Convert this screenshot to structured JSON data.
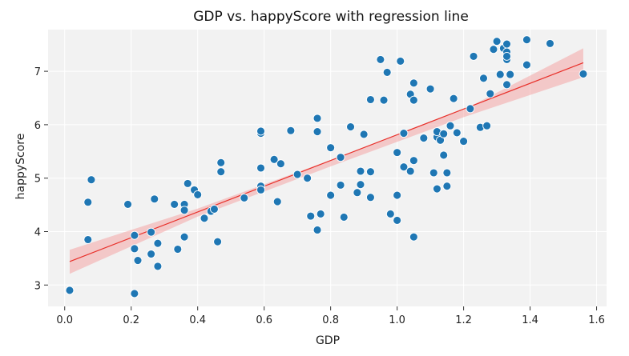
{
  "chart_data": {
    "type": "scatter",
    "title": "GDP vs. happyScore with regression line",
    "xlabel": "GDP",
    "ylabel": "happyScore",
    "xlim": [
      -0.05,
      1.63
    ],
    "ylim": [
      2.6,
      7.78
    ],
    "xticks": [
      "0.0",
      "0.2",
      "0.4",
      "0.6",
      "0.8",
      "1.0",
      "1.2",
      "1.4",
      "1.6"
    ],
    "xtick_values": [
      0.0,
      0.2,
      0.4,
      0.6,
      0.8,
      1.0,
      1.2,
      1.4,
      1.6
    ],
    "yticks": [
      "3",
      "4",
      "5",
      "6",
      "7"
    ],
    "ytick_values": [
      3,
      4,
      5,
      6,
      7
    ],
    "grid": true,
    "colors": {
      "points": "#1f77b4",
      "point_edge": "#ffffff",
      "regression_line": "#e8302a",
      "confidence_band": "#f4a6a6",
      "plot_background": "#f2f2f2",
      "grid": "#ffffff"
    },
    "regression": {
      "x": [
        0.015,
        1.56
      ],
      "y": [
        3.44,
        7.16
      ]
    },
    "confidence_band": {
      "x": [
        0.015,
        0.4,
        0.8,
        1.2,
        1.56
      ],
      "upper": [
        3.66,
        4.43,
        5.34,
        6.28,
        7.43
      ],
      "lower": [
        3.21,
        4.28,
        5.22,
        6.14,
        6.89
      ]
    },
    "points": [
      [
        0.015,
        2.9
      ],
      [
        0.07,
        3.85
      ],
      [
        0.07,
        4.55
      ],
      [
        0.08,
        4.97
      ],
      [
        0.19,
        4.51
      ],
      [
        0.21,
        2.84
      ],
      [
        0.21,
        3.68
      ],
      [
        0.21,
        3.93
      ],
      [
        0.22,
        3.46
      ],
      [
        0.26,
        3.58
      ],
      [
        0.26,
        3.99
      ],
      [
        0.27,
        4.61
      ],
      [
        0.28,
        3.35
      ],
      [
        0.28,
        3.78
      ],
      [
        0.33,
        4.51
      ],
      [
        0.34,
        3.67
      ],
      [
        0.36,
        4.51
      ],
      [
        0.36,
        4.4
      ],
      [
        0.36,
        3.9
      ],
      [
        0.37,
        4.9
      ],
      [
        0.39,
        4.78
      ],
      [
        0.4,
        4.69
      ],
      [
        0.42,
        4.25
      ],
      [
        0.44,
        4.38
      ],
      [
        0.45,
        4.42
      ],
      [
        0.46,
        3.81
      ],
      [
        0.47,
        5.12
      ],
      [
        0.47,
        5.29
      ],
      [
        0.54,
        4.63
      ],
      [
        0.59,
        4.85
      ],
      [
        0.59,
        4.78
      ],
      [
        0.59,
        5.19
      ],
      [
        0.59,
        5.84
      ],
      [
        0.59,
        5.88
      ],
      [
        0.63,
        5.35
      ],
      [
        0.64,
        4.56
      ],
      [
        0.65,
        5.27
      ],
      [
        0.68,
        5.89
      ],
      [
        0.7,
        5.07
      ],
      [
        0.73,
        5.0
      ],
      [
        0.74,
        4.29
      ],
      [
        0.76,
        4.03
      ],
      [
        0.76,
        5.87
      ],
      [
        0.76,
        6.12
      ],
      [
        0.77,
        4.33
      ],
      [
        0.8,
        4.68
      ],
      [
        0.8,
        5.57
      ],
      [
        0.83,
        4.87
      ],
      [
        0.83,
        5.39
      ],
      [
        0.84,
        4.27
      ],
      [
        0.86,
        5.96
      ],
      [
        0.88,
        4.73
      ],
      [
        0.89,
        4.88
      ],
      [
        0.89,
        5.13
      ],
      [
        0.9,
        5.82
      ],
      [
        0.92,
        4.64
      ],
      [
        0.92,
        5.12
      ],
      [
        0.92,
        6.47
      ],
      [
        0.95,
        7.22
      ],
      [
        0.96,
        6.46
      ],
      [
        0.97,
        6.98
      ],
      [
        0.98,
        4.33
      ],
      [
        1.0,
        4.68
      ],
      [
        1.0,
        5.48
      ],
      [
        1.0,
        4.21
      ],
      [
        1.01,
        7.19
      ],
      [
        1.02,
        5.21
      ],
      [
        1.02,
        5.84
      ],
      [
        1.04,
        5.13
      ],
      [
        1.04,
        6.57
      ],
      [
        1.05,
        6.46
      ],
      [
        1.05,
        6.78
      ],
      [
        1.05,
        3.9
      ],
      [
        1.05,
        5.33
      ],
      [
        1.08,
        5.75
      ],
      [
        1.1,
        6.67
      ],
      [
        1.11,
        5.1
      ],
      [
        1.12,
        4.8
      ],
      [
        1.12,
        5.77
      ],
      [
        1.12,
        5.87
      ],
      [
        1.13,
        5.71
      ],
      [
        1.14,
        5.43
      ],
      [
        1.14,
        5.83
      ],
      [
        1.15,
        4.85
      ],
      [
        1.15,
        5.1
      ],
      [
        1.16,
        5.98
      ],
      [
        1.17,
        6.49
      ],
      [
        1.18,
        5.85
      ],
      [
        1.2,
        5.69
      ],
      [
        1.22,
        6.3
      ],
      [
        1.23,
        7.28
      ],
      [
        1.25,
        5.95
      ],
      [
        1.26,
        6.87
      ],
      [
        1.27,
        5.98
      ],
      [
        1.28,
        6.58
      ],
      [
        1.29,
        7.41
      ],
      [
        1.3,
        7.56
      ],
      [
        1.31,
        6.94
      ],
      [
        1.32,
        7.43
      ],
      [
        1.33,
        7.36
      ],
      [
        1.33,
        7.22
      ],
      [
        1.33,
        7.28
      ],
      [
        1.33,
        6.75
      ],
      [
        1.33,
        7.51
      ],
      [
        1.34,
        6.94
      ],
      [
        1.39,
        7.59
      ],
      [
        1.39,
        7.12
      ],
      [
        1.46,
        7.52
      ],
      [
        1.56,
        6.95
      ]
    ]
  }
}
